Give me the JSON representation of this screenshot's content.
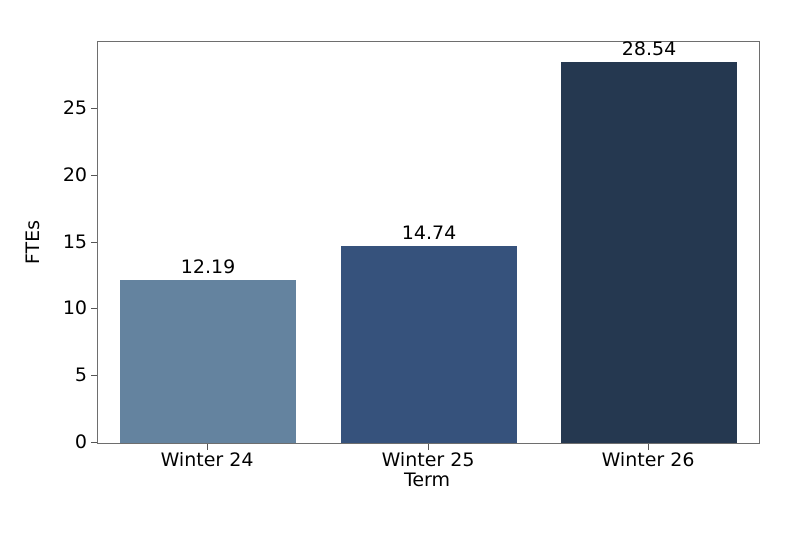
{
  "chart_data": {
    "type": "bar",
    "title": "",
    "categories": [
      "Winter 24",
      "Winter 25",
      "Winter 26"
    ],
    "values": [
      12.19,
      14.74,
      28.54
    ],
    "bar_value_labels": [
      "12.19",
      "14.74",
      "28.54"
    ],
    "xlabel": "Term",
    "ylabel": "FTEs",
    "ylim": [
      0,
      30
    ],
    "yticks": [
      0,
      5,
      10,
      15,
      20,
      25
    ],
    "grid": false,
    "legend": null,
    "bar_colors": [
      "#64839F",
      "#36527C",
      "#253850"
    ],
    "spine_color": "#6e6e6e",
    "tick_color": "#555555",
    "text_color": "#000000",
    "background_color": "#ffffff"
  }
}
